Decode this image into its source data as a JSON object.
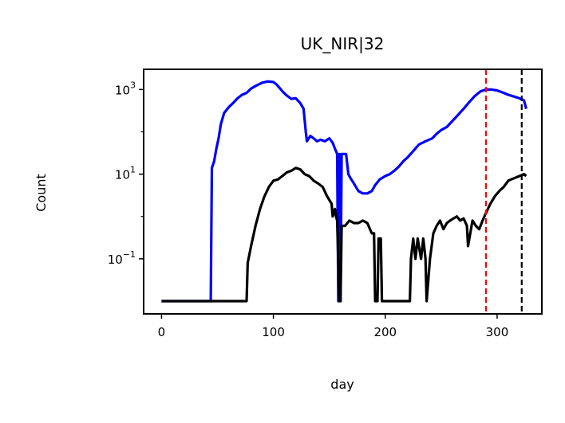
{
  "chart_data": {
    "type": "line",
    "title": "UK_NIR|32",
    "xlabel": "day",
    "ylabel": "Count",
    "xlim": [
      -16,
      340
    ],
    "ylim": [
      0.005,
      3000
    ],
    "yscale": "log",
    "grid": false,
    "xticks": [
      0,
      100,
      200,
      300
    ],
    "xtick_labels": [
      "0",
      "100",
      "200",
      "300"
    ],
    "yticks": [
      0.1,
      10,
      1000
    ],
    "ytick_labels": [
      {
        "base": "10",
        "exp": "−1"
      },
      {
        "base": "10",
        "exp": "1"
      },
      {
        "base": "10",
        "exp": "3"
      }
    ],
    "vlines": [
      {
        "x": 290,
        "color": "#ff0000",
        "style": "dashed"
      },
      {
        "x": 322,
        "color": "#000000",
        "style": "dashed"
      }
    ],
    "series": [
      {
        "color": "#0000ff",
        "points": [
          [
            0,
            0.01
          ],
          [
            44,
            0.01
          ],
          [
            45,
            14
          ],
          [
            47,
            20
          ],
          [
            49,
            40
          ],
          [
            51,
            70
          ],
          [
            53,
            150
          ],
          [
            56,
            280
          ],
          [
            60,
            380
          ],
          [
            64,
            480
          ],
          [
            68,
            620
          ],
          [
            72,
            750
          ],
          [
            76,
            830
          ],
          [
            80,
            1050
          ],
          [
            85,
            1250
          ],
          [
            90,
            1450
          ],
          [
            95,
            1550
          ],
          [
            100,
            1500
          ],
          [
            103,
            1300
          ],
          [
            106,
            1050
          ],
          [
            109,
            850
          ],
          [
            112,
            720
          ],
          [
            116,
            600
          ],
          [
            120,
            620
          ],
          [
            124,
            480
          ],
          [
            127,
            350
          ],
          [
            129,
            100
          ],
          [
            130,
            60
          ],
          [
            133,
            80
          ],
          [
            136,
            70
          ],
          [
            139,
            60
          ],
          [
            142,
            65
          ],
          [
            146,
            60
          ],
          [
            150,
            70
          ],
          [
            153,
            55
          ],
          [
            155,
            40
          ],
          [
            157,
            30
          ],
          [
            158,
            0.01
          ],
          [
            159,
            30
          ],
          [
            160,
            0.01
          ],
          [
            161,
            30
          ],
          [
            163,
            30
          ],
          [
            165,
            30
          ],
          [
            167,
            10
          ],
          [
            169,
            8
          ],
          [
            172,
            6
          ],
          [
            176,
            4
          ],
          [
            180,
            3.5
          ],
          [
            184,
            3.5
          ],
          [
            188,
            4
          ],
          [
            191,
            5.5
          ],
          [
            195,
            7.5
          ],
          [
            200,
            9
          ],
          [
            204,
            10
          ],
          [
            208,
            12
          ],
          [
            212,
            15
          ],
          [
            216,
            20
          ],
          [
            220,
            25
          ],
          [
            225,
            35
          ],
          [
            230,
            50
          ],
          [
            236,
            60
          ],
          [
            242,
            70
          ],
          [
            246,
            90
          ],
          [
            250,
            110
          ],
          [
            255,
            130
          ],
          [
            260,
            180
          ],
          [
            265,
            250
          ],
          [
            270,
            350
          ],
          [
            275,
            500
          ],
          [
            280,
            700
          ],
          [
            285,
            900
          ],
          [
            290,
            1000
          ],
          [
            295,
            1000
          ],
          [
            300,
            950
          ],
          [
            305,
            850
          ],
          [
            310,
            750
          ],
          [
            315,
            680
          ],
          [
            320,
            620
          ],
          [
            324,
            550
          ],
          [
            326,
            350
          ]
        ]
      },
      {
        "color": "#000000",
        "points": [
          [
            0,
            0.01
          ],
          [
            76,
            0.01
          ],
          [
            77,
            0.08
          ],
          [
            80,
            0.2
          ],
          [
            84,
            0.6
          ],
          [
            88,
            1.5
          ],
          [
            92,
            3
          ],
          [
            96,
            5
          ],
          [
            100,
            7
          ],
          [
            104,
            7.5
          ],
          [
            108,
            9
          ],
          [
            112,
            11
          ],
          [
            116,
            12
          ],
          [
            120,
            14
          ],
          [
            124,
            13
          ],
          [
            128,
            10
          ],
          [
            132,
            9
          ],
          [
            136,
            7
          ],
          [
            140,
            6
          ],
          [
            144,
            5
          ],
          [
            148,
            3
          ],
          [
            152,
            2
          ],
          [
            153,
            1
          ],
          [
            155,
            1.5
          ],
          [
            156,
            1
          ],
          [
            157,
            0.8
          ],
          [
            159,
            0.01
          ],
          [
            160,
            0.01
          ],
          [
            161,
            0.6
          ],
          [
            164,
            0.6
          ],
          [
            168,
            0.8
          ],
          [
            172,
            0.7
          ],
          [
            176,
            0.7
          ],
          [
            180,
            0.8
          ],
          [
            184,
            0.7
          ],
          [
            188,
            0.4
          ],
          [
            190,
            0.4
          ],
          [
            191,
            0.01
          ],
          [
            193,
            0.01
          ],
          [
            194,
            0.3
          ],
          [
            196,
            0.3
          ],
          [
            197,
            0.01
          ],
          [
            222,
            0.01
          ],
          [
            223,
            0.1
          ],
          [
            225,
            0.3
          ],
          [
            227,
            0.1
          ],
          [
            229,
            0.3
          ],
          [
            232,
            0.1
          ],
          [
            234,
            0.3
          ],
          [
            236,
            0.1
          ],
          [
            237,
            0.01
          ],
          [
            240,
            0.1
          ],
          [
            243,
            0.4
          ],
          [
            246,
            0.6
          ],
          [
            249,
            0.8
          ],
          [
            252,
            0.5
          ],
          [
            255,
            0.7
          ],
          [
            258,
            0.8
          ],
          [
            261,
            0.9
          ],
          [
            264,
            1.0
          ],
          [
            267,
            0.8
          ],
          [
            270,
            0.9
          ],
          [
            273,
            0.6
          ],
          [
            274,
            0.2
          ],
          [
            276,
            0.4
          ],
          [
            278,
            0.8
          ],
          [
            281,
            0.6
          ],
          [
            284,
            0.5
          ],
          [
            287,
            0.8
          ],
          [
            290,
            1.2
          ],
          [
            294,
            2
          ],
          [
            298,
            3
          ],
          [
            302,
            4
          ],
          [
            306,
            5
          ],
          [
            310,
            7
          ],
          [
            315,
            8
          ],
          [
            320,
            9
          ],
          [
            324,
            10
          ],
          [
            326,
            9
          ]
        ]
      }
    ]
  }
}
